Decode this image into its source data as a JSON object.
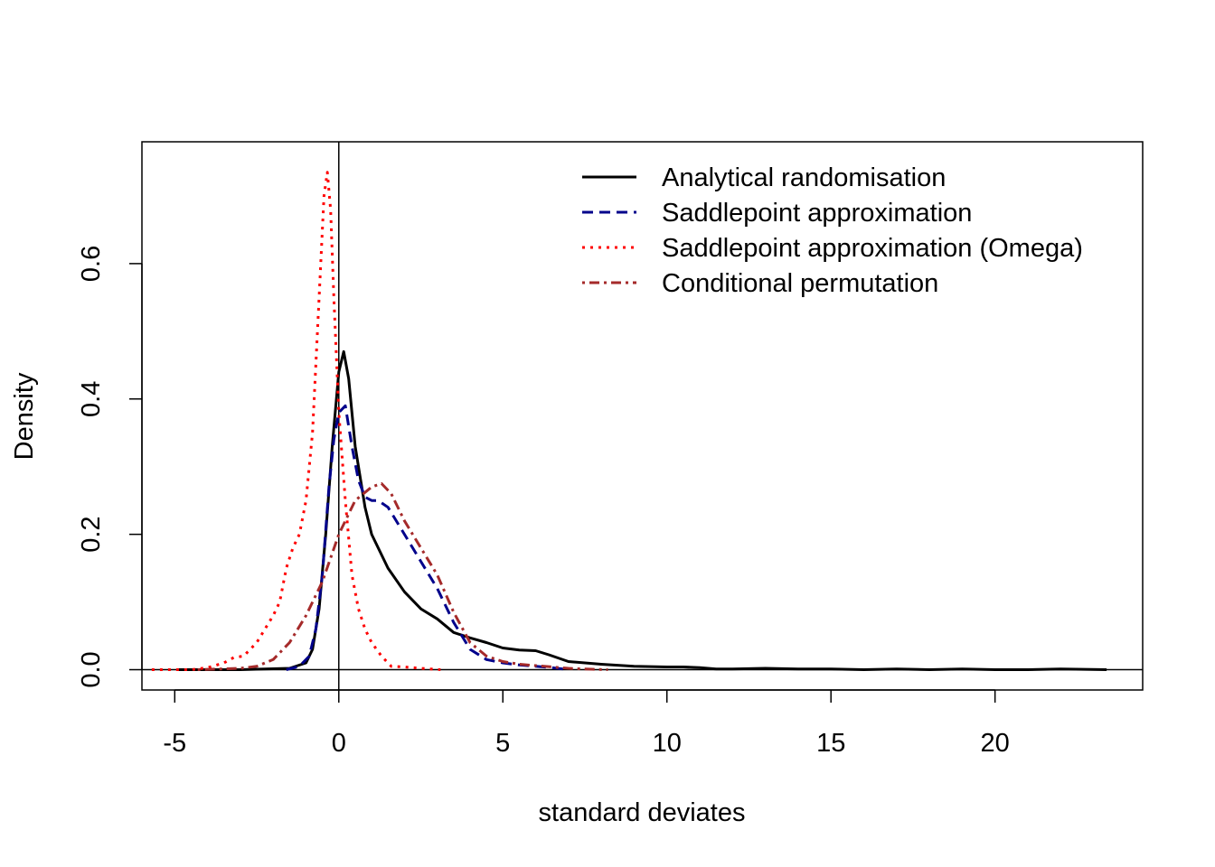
{
  "chart_data": {
    "type": "line",
    "title": "",
    "xlabel": "standard deviates",
    "ylabel": "Density",
    "xlim": [
      -6,
      24.5
    ],
    "ylim": [
      -0.03,
      0.78
    ],
    "xticks": [
      -5,
      0,
      5,
      10,
      15,
      20
    ],
    "xtick_labels": [
      "-5",
      "0",
      "5",
      "10",
      "15",
      "20"
    ],
    "yticks": [
      0.0,
      0.2,
      0.4,
      0.6
    ],
    "ytick_labels": [
      "0.0",
      "0.2",
      "0.4",
      "0.6"
    ],
    "grid": false,
    "legend_position": "top-right",
    "reference_lines": [
      {
        "orientation": "vertical",
        "value": 0,
        "color": "#000000"
      },
      {
        "orientation": "horizontal",
        "value": 0,
        "color": "#000000"
      }
    ],
    "series": [
      {
        "name": "Analytical randomisation",
        "color": "#000000",
        "dash": "solid",
        "x": [
          -4.9,
          -3.0,
          -1.5,
          -1.0,
          -0.8,
          -0.6,
          -0.4,
          -0.2,
          0.0,
          0.15,
          0.3,
          0.5,
          0.8,
          1.0,
          1.5,
          2.0,
          2.5,
          3.0,
          3.5,
          4.0,
          4.5,
          5.0,
          5.5,
          6.0,
          6.4,
          7.0,
          8.0,
          9.0,
          10.0,
          10.5,
          11.0,
          11.5,
          12.0,
          13.0,
          14.0,
          15.0,
          16.0,
          17.0,
          18.0,
          19.0,
          20.0,
          21.0,
          22.0,
          23.4
        ],
        "y": [
          0.0,
          0.0,
          0.002,
          0.01,
          0.03,
          0.09,
          0.2,
          0.33,
          0.44,
          0.47,
          0.43,
          0.33,
          0.24,
          0.2,
          0.15,
          0.115,
          0.09,
          0.075,
          0.055,
          0.047,
          0.04,
          0.032,
          0.029,
          0.028,
          0.022,
          0.012,
          0.008,
          0.005,
          0.004,
          0.004,
          0.003,
          0.001,
          0.001,
          0.002,
          0.001,
          0.001,
          0.0,
          0.001,
          0.0,
          0.001,
          0.0,
          0.0,
          0.001,
          0.0
        ]
      },
      {
        "name": "Saddlepoint approximation",
        "color": "#00008b",
        "dash": "dashed",
        "x": [
          -1.6,
          -1.2,
          -0.9,
          -0.7,
          -0.5,
          -0.3,
          -0.15,
          0.0,
          0.2,
          0.4,
          0.6,
          0.8,
          1.0,
          1.2,
          1.5,
          2.0,
          2.5,
          3.0,
          3.5,
          4.0,
          4.5,
          5.0,
          5.5,
          6.0,
          6.5,
          7.0
        ],
        "y": [
          0.0,
          0.005,
          0.02,
          0.06,
          0.14,
          0.27,
          0.34,
          0.38,
          0.39,
          0.33,
          0.28,
          0.255,
          0.25,
          0.25,
          0.24,
          0.2,
          0.16,
          0.12,
          0.07,
          0.03,
          0.015,
          0.01,
          0.007,
          0.005,
          0.003,
          0.0
        ]
      },
      {
        "name": "Saddlepoint approximation (Omega)",
        "color": "#ff0000",
        "dash": "dotted",
        "x": [
          -5.7,
          -4.5,
          -4.0,
          -3.5,
          -3.2,
          -2.9,
          -2.5,
          -2.0,
          -1.8,
          -1.6,
          -1.4,
          -1.2,
          -1.0,
          -0.8,
          -0.6,
          -0.45,
          -0.35,
          -0.25,
          -0.15,
          0.0,
          0.2,
          0.4,
          0.6,
          0.8,
          1.0,
          1.3,
          1.6,
          2.0,
          2.5,
          3.1
        ],
        "y": [
          0.0,
          0.0,
          0.003,
          0.01,
          0.018,
          0.02,
          0.04,
          0.08,
          0.1,
          0.15,
          0.18,
          0.2,
          0.25,
          0.35,
          0.55,
          0.7,
          0.735,
          0.68,
          0.55,
          0.38,
          0.25,
          0.14,
          0.09,
          0.06,
          0.04,
          0.02,
          0.005,
          0.004,
          0.002,
          0.0
        ]
      },
      {
        "name": "Conditional permutation",
        "color": "#a52a2a",
        "dash": "dotdash",
        "x": [
          -4.3,
          -3.0,
          -2.5,
          -2.0,
          -1.5,
          -1.0,
          -0.5,
          0.0,
          0.5,
          1.0,
          1.3,
          1.6,
          2.0,
          2.5,
          3.0,
          3.5,
          4.0,
          4.5,
          5.0,
          5.5,
          6.0,
          6.5,
          7.0,
          7.5,
          8.2
        ],
        "y": [
          0.0,
          0.002,
          0.005,
          0.015,
          0.04,
          0.08,
          0.13,
          0.2,
          0.25,
          0.27,
          0.275,
          0.26,
          0.22,
          0.18,
          0.14,
          0.085,
          0.04,
          0.02,
          0.012,
          0.008,
          0.006,
          0.004,
          0.002,
          0.001,
          0.0
        ]
      }
    ]
  }
}
